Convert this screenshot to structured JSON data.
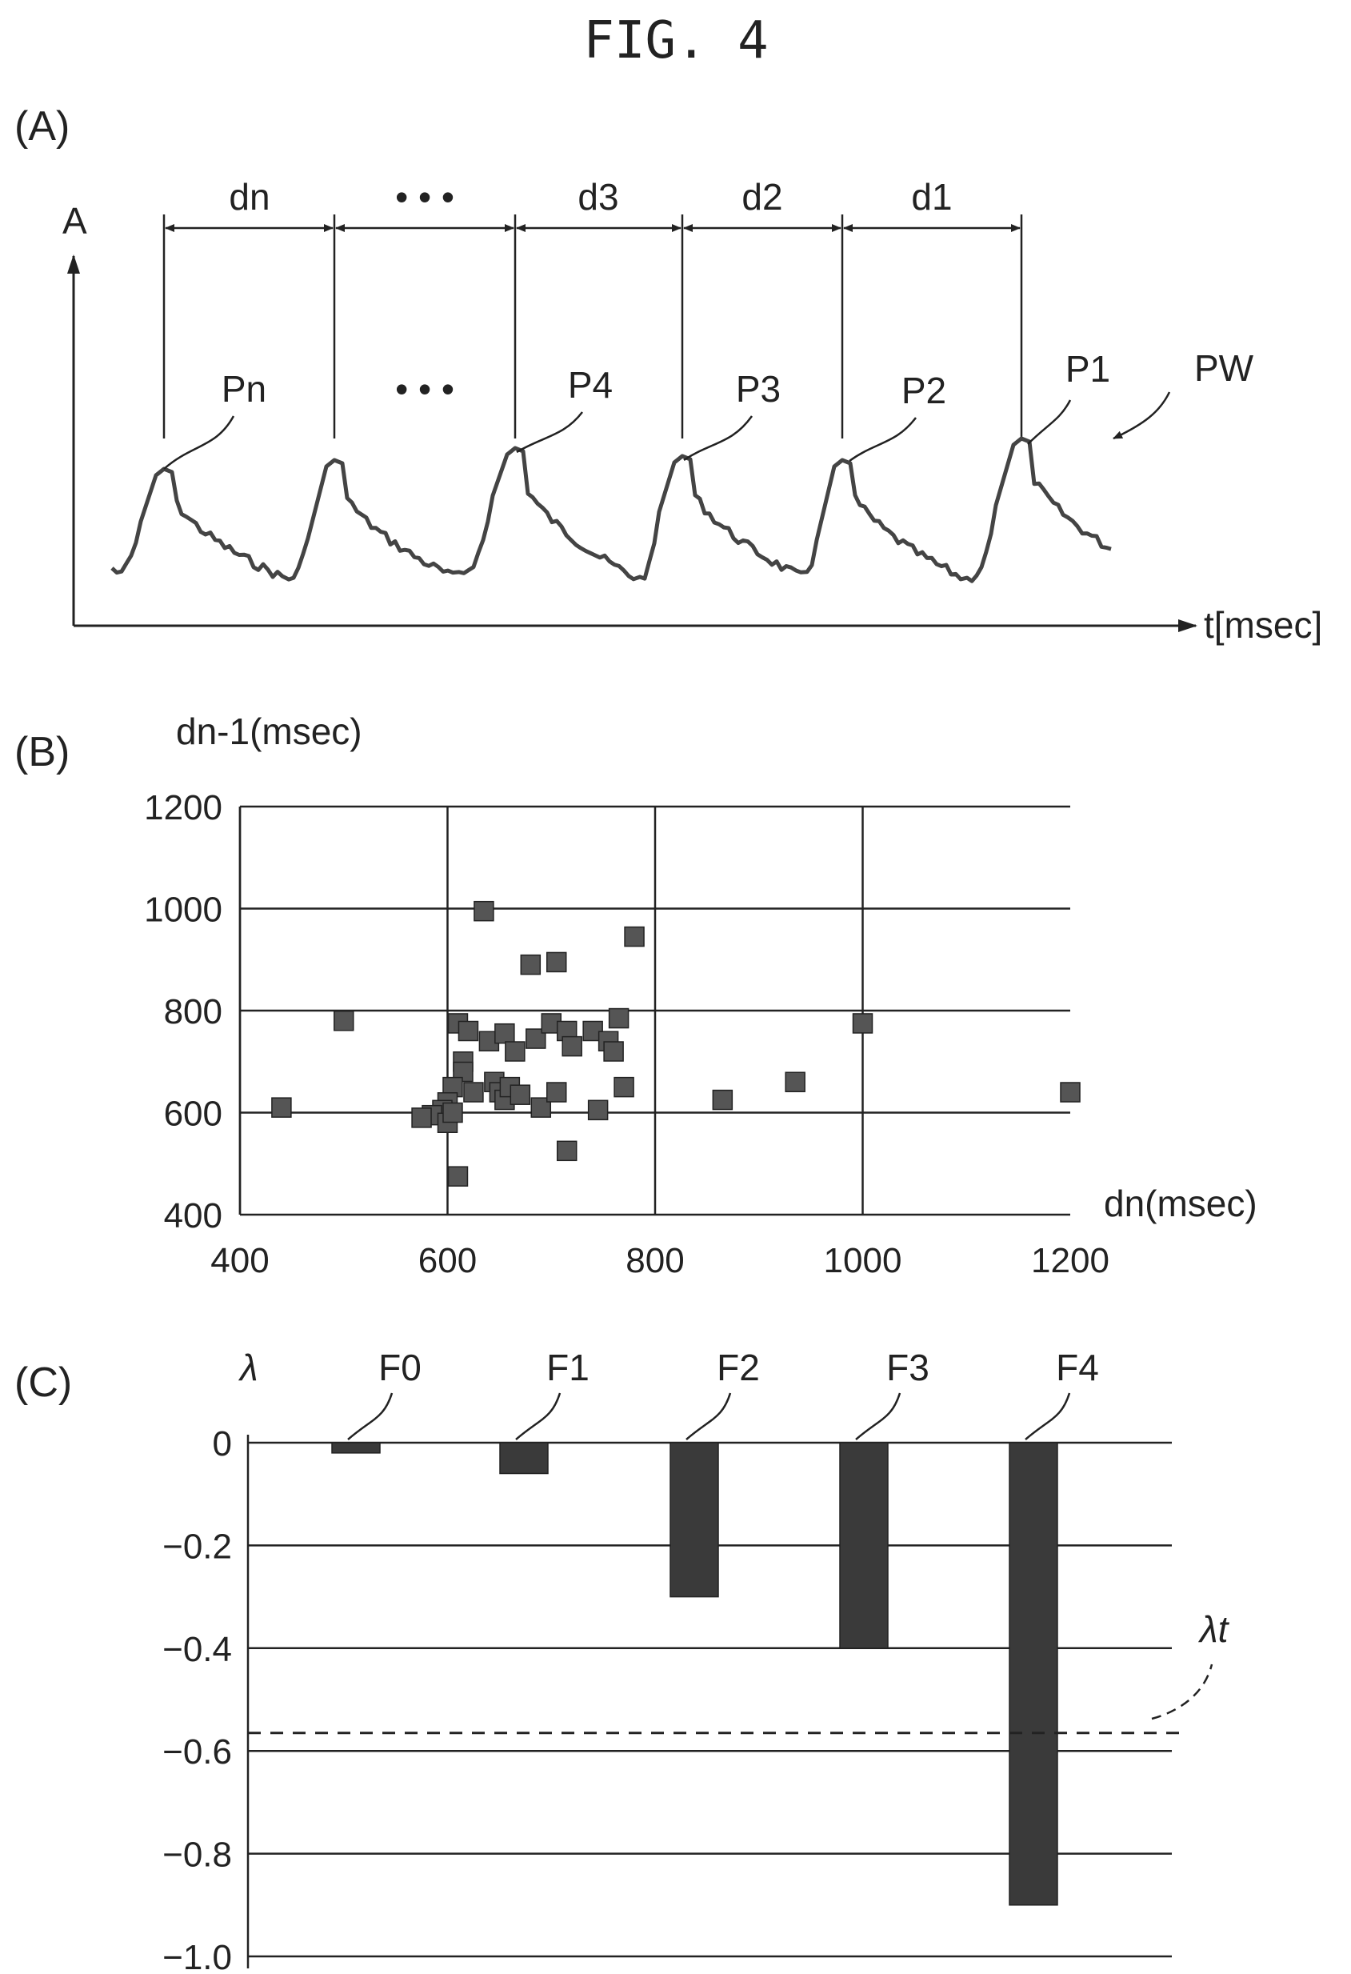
{
  "figure": {
    "title": "FIG. 4"
  },
  "panel_a": {
    "label": "(A)",
    "y_axis_label": "A",
    "x_axis_label": "t[msec]",
    "intervals": [
      "dn",
      "• • •",
      "d3",
      "d2",
      "d1"
    ],
    "peaks": [
      "Pn",
      "• • •",
      "P4",
      "P3",
      "P2",
      "P1"
    ],
    "waveform_label": "PW"
  },
  "panel_b": {
    "label": "(B)",
    "y_axis_label": "dn-1(msec)",
    "x_axis_label": "dn(msec)",
    "x_ticks": [
      "400",
      "600",
      "800",
      "1000",
      "1200"
    ],
    "y_ticks": [
      "1200",
      "1000",
      "800",
      "600",
      "400"
    ]
  },
  "panel_c": {
    "label": "(C)",
    "y_axis_label": "λ",
    "y_ticks": [
      "0",
      "−0.2",
      "−0.4",
      "−0.6",
      "−0.8",
      "−1.0"
    ],
    "threshold_label": "λt"
  },
  "chart_data": [
    {
      "type": "scatter",
      "panel": "B",
      "xlabel": "dn(msec)",
      "ylabel": "dn-1(msec)",
      "xlim": [
        400,
        1200
      ],
      "ylim": [
        400,
        1200
      ],
      "grid": true,
      "points": [
        [
          440,
          610
        ],
        [
          500,
          780
        ],
        [
          635,
          995
        ],
        [
          780,
          945
        ],
        [
          680,
          890
        ],
        [
          705,
          895
        ],
        [
          610,
          775
        ],
        [
          620,
          760
        ],
        [
          640,
          740
        ],
        [
          655,
          755
        ],
        [
          665,
          720
        ],
        [
          685,
          745
        ],
        [
          700,
          775
        ],
        [
          715,
          760
        ],
        [
          720,
          730
        ],
        [
          740,
          760
        ],
        [
          755,
          740
        ],
        [
          765,
          785
        ],
        [
          760,
          720
        ],
        [
          615,
          700
        ],
        [
          615,
          680
        ],
        [
          625,
          640
        ],
        [
          645,
          660
        ],
        [
          650,
          640
        ],
        [
          655,
          625
        ],
        [
          660,
          650
        ],
        [
          670,
          635
        ],
        [
          605,
          650
        ],
        [
          600,
          620
        ],
        [
          595,
          605
        ],
        [
          585,
          595
        ],
        [
          575,
          590
        ],
        [
          600,
          580
        ],
        [
          605,
          600
        ],
        [
          690,
          610
        ],
        [
          705,
          640
        ],
        [
          745,
          605
        ],
        [
          770,
          650
        ],
        [
          715,
          525
        ],
        [
          610,
          475
        ],
        [
          865,
          625
        ],
        [
          935,
          660
        ],
        [
          1000,
          775
        ],
        [
          1200,
          640
        ]
      ]
    },
    {
      "type": "bar",
      "panel": "C",
      "ylabel": "λ",
      "categories": [
        "F0",
        "F1",
        "F2",
        "F3",
        "F4"
      ],
      "values": [
        -0.02,
        -0.06,
        -0.3,
        -0.4,
        -0.9
      ],
      "ylim": [
        -1.0,
        0
      ],
      "threshold": {
        "label": "λt",
        "value": -0.565
      }
    }
  ]
}
